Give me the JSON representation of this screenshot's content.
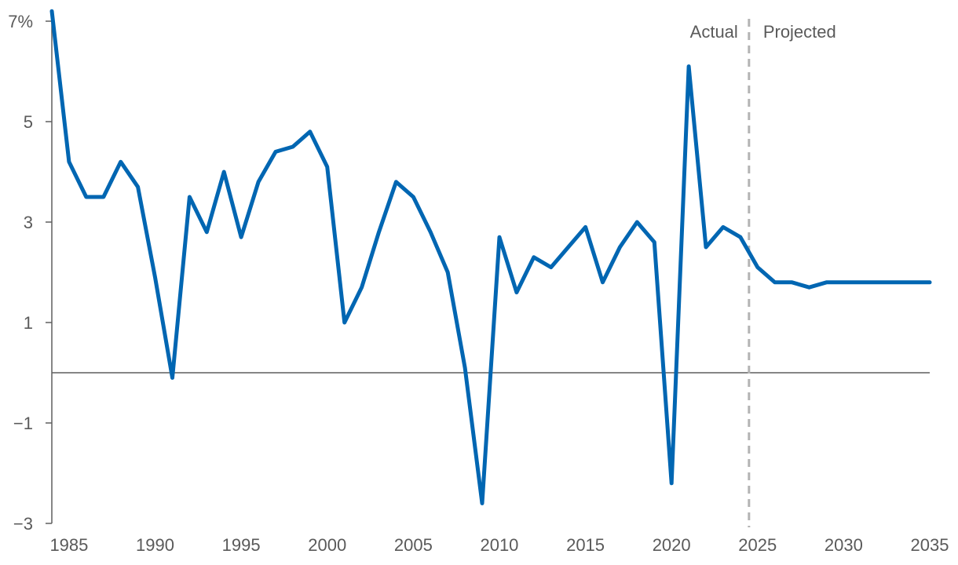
{
  "chart_data": {
    "type": "line",
    "title": "",
    "xlabel": "",
    "ylabel": "",
    "xlim": [
      1984,
      2035
    ],
    "ylim": [
      -3,
      7
    ],
    "x_ticks": [
      "1985",
      "1990",
      "1995",
      "2000",
      "2005",
      "2010",
      "2015",
      "2020",
      "2025",
      "2030",
      "2035"
    ],
    "y_ticks": [
      {
        "value": 7,
        "label": "7%"
      },
      {
        "value": 5,
        "label": "5"
      },
      {
        "value": 3,
        "label": "3"
      },
      {
        "value": 1,
        "label": "1"
      },
      {
        "value": -1,
        "label": "−1"
      },
      {
        "value": -3,
        "label": "−3"
      }
    ],
    "zero_line": 0,
    "divider_x": 2024.5,
    "annotations": {
      "actual": "Actual",
      "projected": "Projected"
    },
    "line_color": "#0066b2",
    "divider_color": "#b3b3b3",
    "series": [
      {
        "x": [
          1984,
          1985,
          1986,
          1987,
          1988,
          1989,
          1990,
          1991,
          1992,
          1993,
          1994,
          1995,
          1996,
          1997,
          1998,
          1999,
          2000,
          2001,
          2002,
          2003,
          2004,
          2005,
          2006,
          2007,
          2008,
          2009,
          2010,
          2011,
          2012,
          2013,
          2014,
          2015,
          2016,
          2017,
          2018,
          2019,
          2020,
          2021,
          2022,
          2023,
          2024,
          2025,
          2026,
          2027,
          2028,
          2029,
          2030,
          2031,
          2032,
          2033,
          2034,
          2035
        ],
        "values": [
          7.2,
          4.2,
          3.5,
          3.5,
          4.2,
          3.7,
          1.9,
          -0.1,
          3.5,
          2.8,
          4.0,
          2.7,
          3.8,
          4.4,
          4.5,
          4.8,
          4.1,
          1.0,
          1.7,
          2.8,
          3.8,
          3.5,
          2.8,
          2.0,
          0.1,
          -2.6,
          2.7,
          1.6,
          2.3,
          2.1,
          2.5,
          2.9,
          1.8,
          2.5,
          3.0,
          2.6,
          -2.2,
          6.1,
          2.5,
          2.9,
          2.7,
          2.1,
          1.8,
          1.8,
          1.7,
          1.8,
          1.8,
          1.8,
          1.8,
          1.8,
          1.8,
          1.8
        ]
      }
    ]
  }
}
